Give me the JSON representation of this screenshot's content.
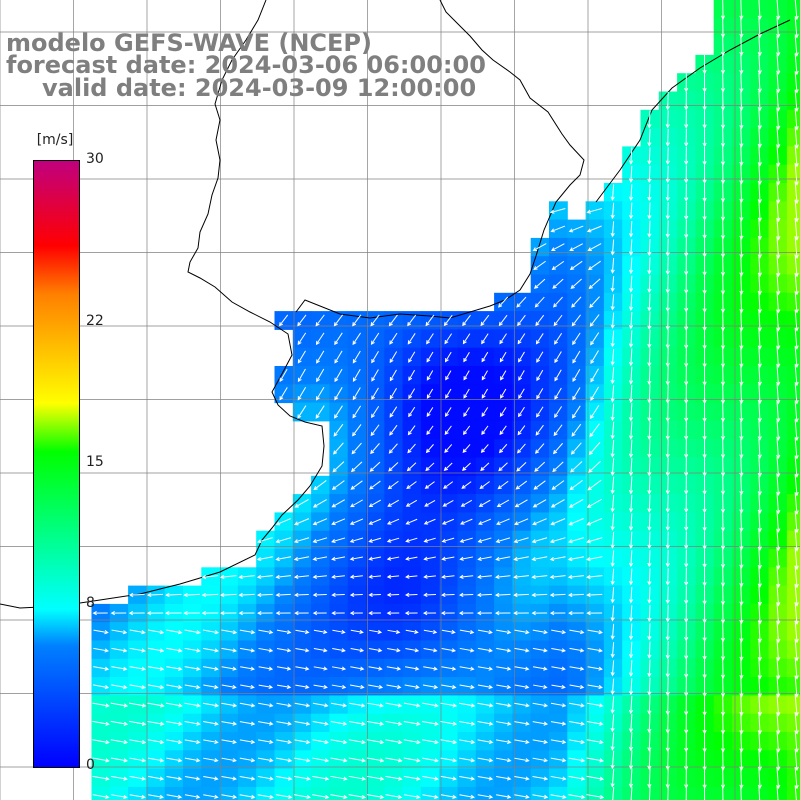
{
  "title": {
    "line1": "modelo GEFS-WAVE (NCEP)",
    "line2": "forecast date: 2024-03-06 06:00:00",
    "line3": "valid date: 2024-03-09 12:00:00"
  },
  "colorbar": {
    "units": "[m/s]",
    "min": 0,
    "max": 30,
    "labels": [
      "30",
      "22",
      "15",
      "8",
      "0"
    ],
    "label_values": [
      30,
      22,
      15,
      8,
      0
    ],
    "colors": [
      "#0000ff",
      "#0080ff",
      "#00ffff",
      "#00ff00",
      "#ffff00",
      "#ff8000",
      "#ff0000",
      "#c0007f"
    ]
  },
  "map": {
    "land_color": "#ffffff",
    "grid_color": "#808080",
    "coast_color": "#000000",
    "arrow_color": "#ffffff",
    "grid_lines": "1 degree"
  },
  "legend": {
    "wind_speed_field": "wind speed with direction arrows"
  }
}
